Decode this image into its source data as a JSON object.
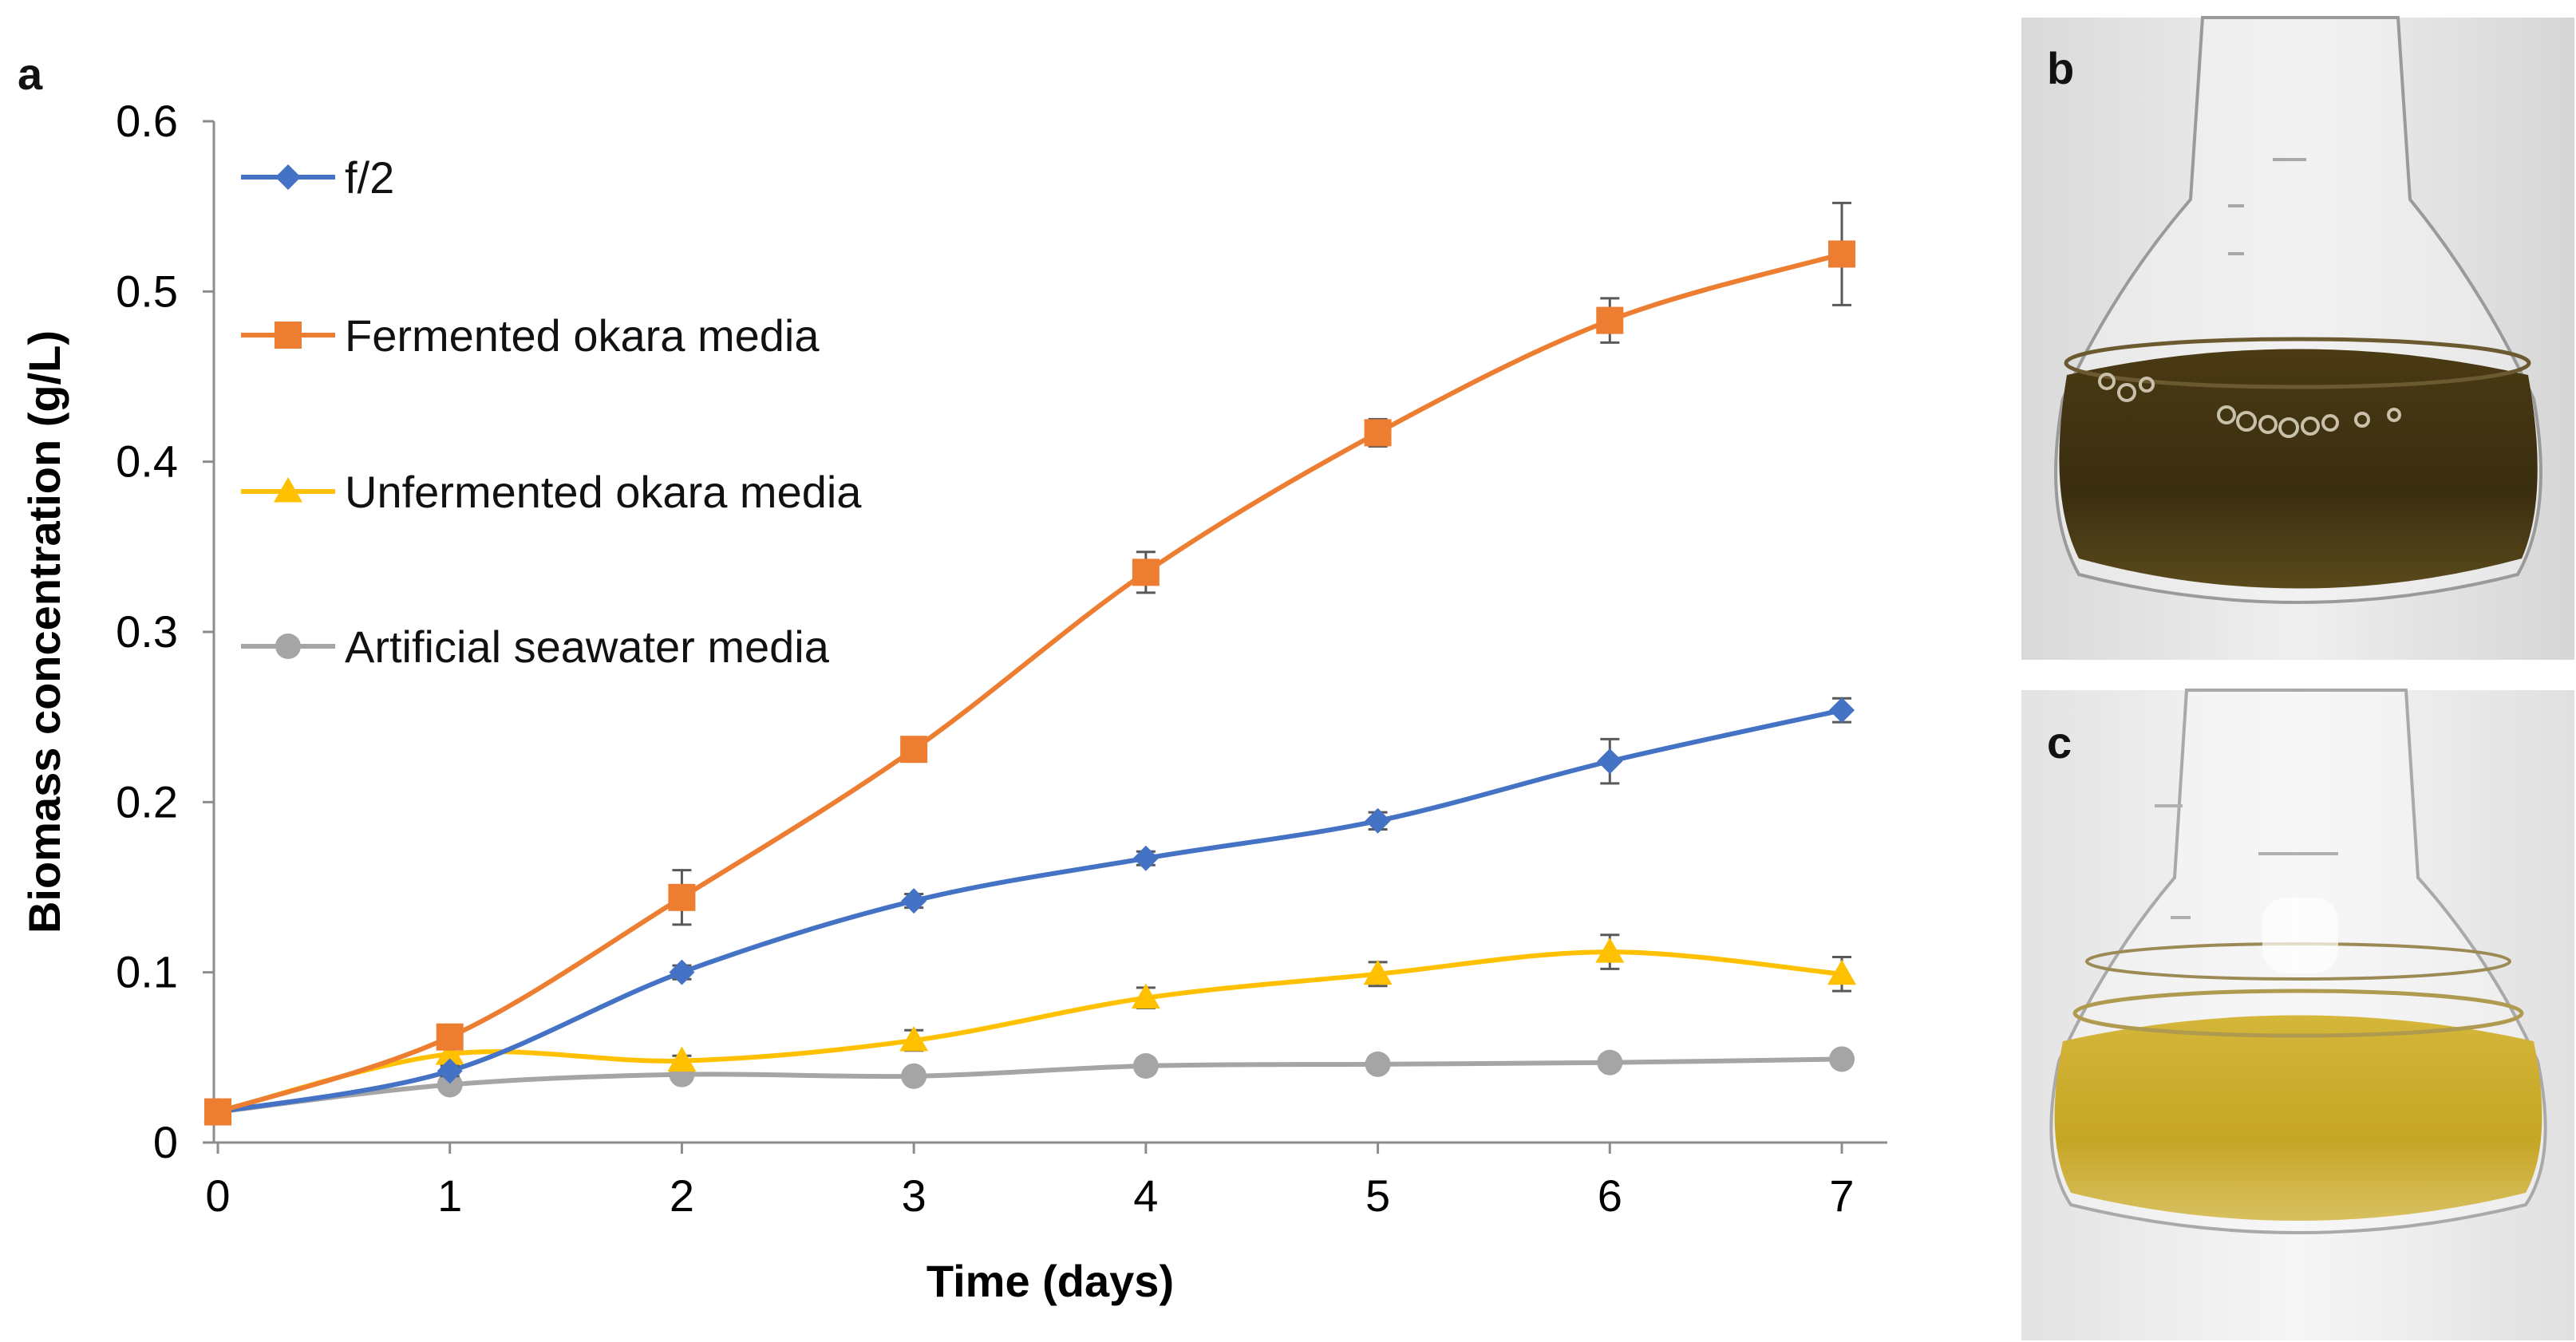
{
  "figure": {
    "panel_a_label": "a",
    "panel_b_label": "b",
    "panel_c_label": "c"
  },
  "chart_data": {
    "type": "line",
    "title": "",
    "xlabel": "Time (days)",
    "ylabel": "Biomass concentration (g/L)",
    "x": [
      0,
      1,
      2,
      3,
      4,
      5,
      6,
      7
    ],
    "x_ticks": [
      "0",
      "1",
      "2",
      "3",
      "4",
      "5",
      "6",
      "7"
    ],
    "y_ticks": [
      "0",
      "0.1",
      "0.2",
      "0.3",
      "0.4",
      "0.5",
      "0.6"
    ],
    "xlim": [
      0,
      7
    ],
    "ylim": [
      0,
      0.6
    ],
    "grid": false,
    "legend_position": "top-left",
    "series": [
      {
        "name": "f/2",
        "color": "#4472C4",
        "marker": "diamond",
        "values": [
          0.018,
          0.042,
          0.1,
          0.142,
          0.167,
          0.189,
          0.224,
          0.254
        ],
        "errors": [
          0.002,
          0.003,
          0.004,
          0.004,
          0.004,
          0.005,
          0.013,
          0.007
        ]
      },
      {
        "name": "Fermented okara media",
        "color": "#ED7D31",
        "marker": "square",
        "values": [
          0.018,
          0.062,
          0.144,
          0.231,
          0.335,
          0.417,
          0.483,
          0.522
        ],
        "errors": [
          0.002,
          0.004,
          0.016,
          0.004,
          0.012,
          0.008,
          0.013,
          0.03
        ]
      },
      {
        "name": "Unfermented okara media",
        "color": "#FFC000",
        "marker": "triangle",
        "values": [
          0.018,
          0.052,
          0.048,
          0.06,
          0.085,
          0.099,
          0.112,
          0.099
        ],
        "errors": [
          0.002,
          0.003,
          0.003,
          0.006,
          0.006,
          0.007,
          0.01,
          0.01
        ]
      },
      {
        "name": "Artificial seawater media",
        "color": "#A5A5A5",
        "marker": "circle",
        "values": [
          0.018,
          0.034,
          0.04,
          0.039,
          0.045,
          0.046,
          0.047,
          0.049
        ],
        "errors": [
          0.001,
          0.002,
          0.002,
          0.002,
          0.002,
          0.002,
          0.002,
          0.002
        ]
      }
    ]
  },
  "photos": {
    "b": {
      "liquid_color": "#3a2e10"
    },
    "c": {
      "liquid_color": "#c9a82a"
    }
  }
}
